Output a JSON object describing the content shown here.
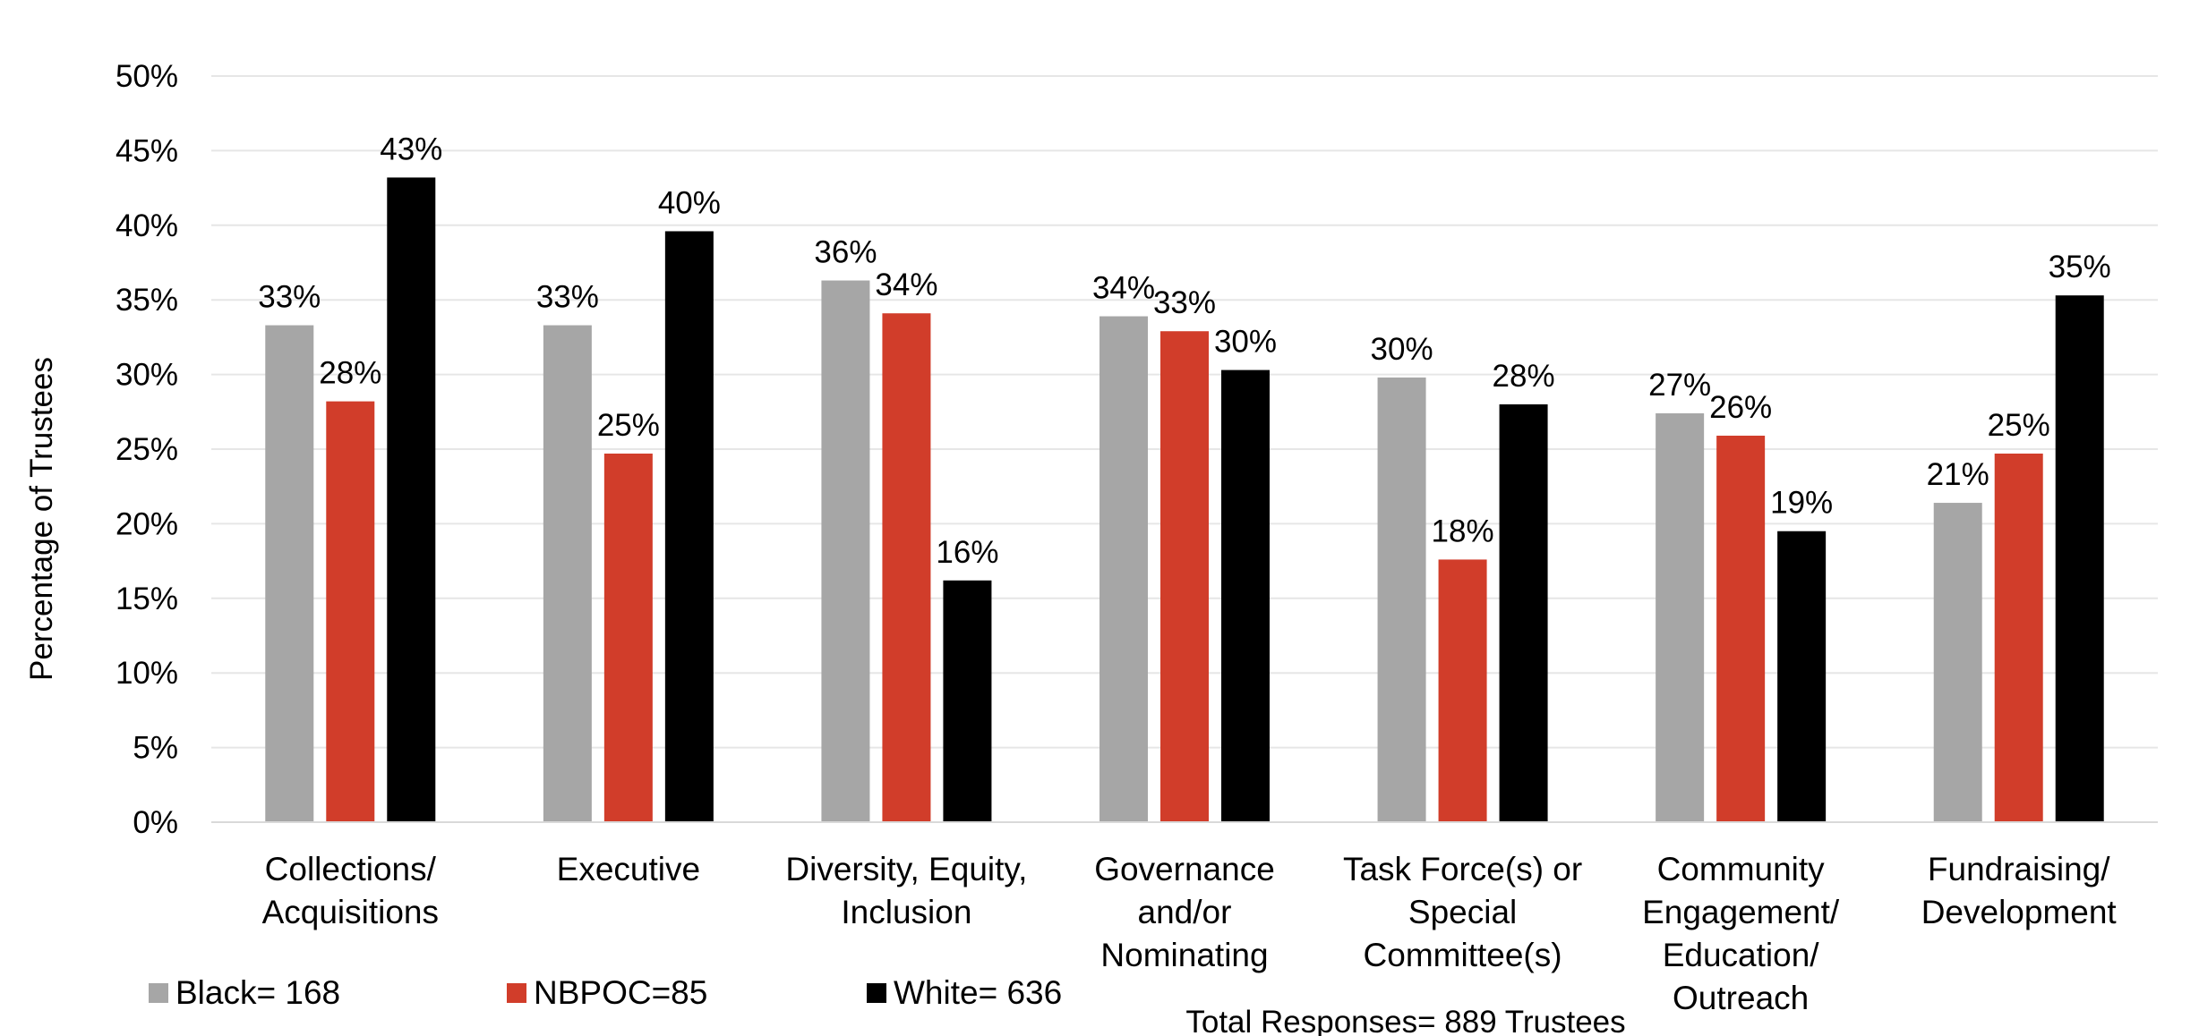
{
  "chart_data": {
    "type": "bar",
    "categories": [
      [
        "Collections/",
        "Acquisitions"
      ],
      [
        "Executive"
      ],
      [
        "Diversity, Equity,",
        "Inclusion"
      ],
      [
        "Governance",
        "and/or",
        "Nominating"
      ],
      [
        "Task Force(s) or",
        "Special",
        "Committee(s)"
      ],
      [
        "Community",
        "Engagement/",
        "Education/",
        "Outreach"
      ],
      [
        "Fundraising/",
        "Development"
      ]
    ],
    "series": [
      {
        "name": "Black= 168",
        "color": "#a6a6a6",
        "values": [
          33.3,
          33.3,
          36.3,
          33.9,
          29.8,
          27.4,
          21.4
        ],
        "labels": [
          "33%",
          "33%",
          "36%",
          "34%",
          "30%",
          "27%",
          "21%"
        ]
      },
      {
        "name": "NBPOC=85",
        "color": "#d13d2a",
        "values": [
          28.2,
          24.7,
          34.1,
          32.9,
          17.6,
          25.9,
          24.7
        ],
        "labels": [
          "28%",
          "25%",
          "34%",
          "33%",
          "18%",
          "26%",
          "25%"
        ]
      },
      {
        "name": "White= 636",
        "color": "#000000",
        "values": [
          43.2,
          39.6,
          16.2,
          30.3,
          28.0,
          19.5,
          35.3
        ],
        "labels": [
          "43%",
          "40%",
          "16%",
          "30%",
          "28%",
          "19%",
          "35%"
        ]
      }
    ],
    "yticks": [
      "0%",
      "5%",
      "10%",
      "15%",
      "20%",
      "25%",
      "30%",
      "35%",
      "40%",
      "45%",
      "50%"
    ],
    "ylim": [
      0,
      50
    ],
    "ylabel": "Percentage of Trustees",
    "xlabel": "",
    "title": "",
    "grid": true,
    "legend_position": "bottom-left",
    "footnote": "Total Responses= 889 Trustees"
  }
}
